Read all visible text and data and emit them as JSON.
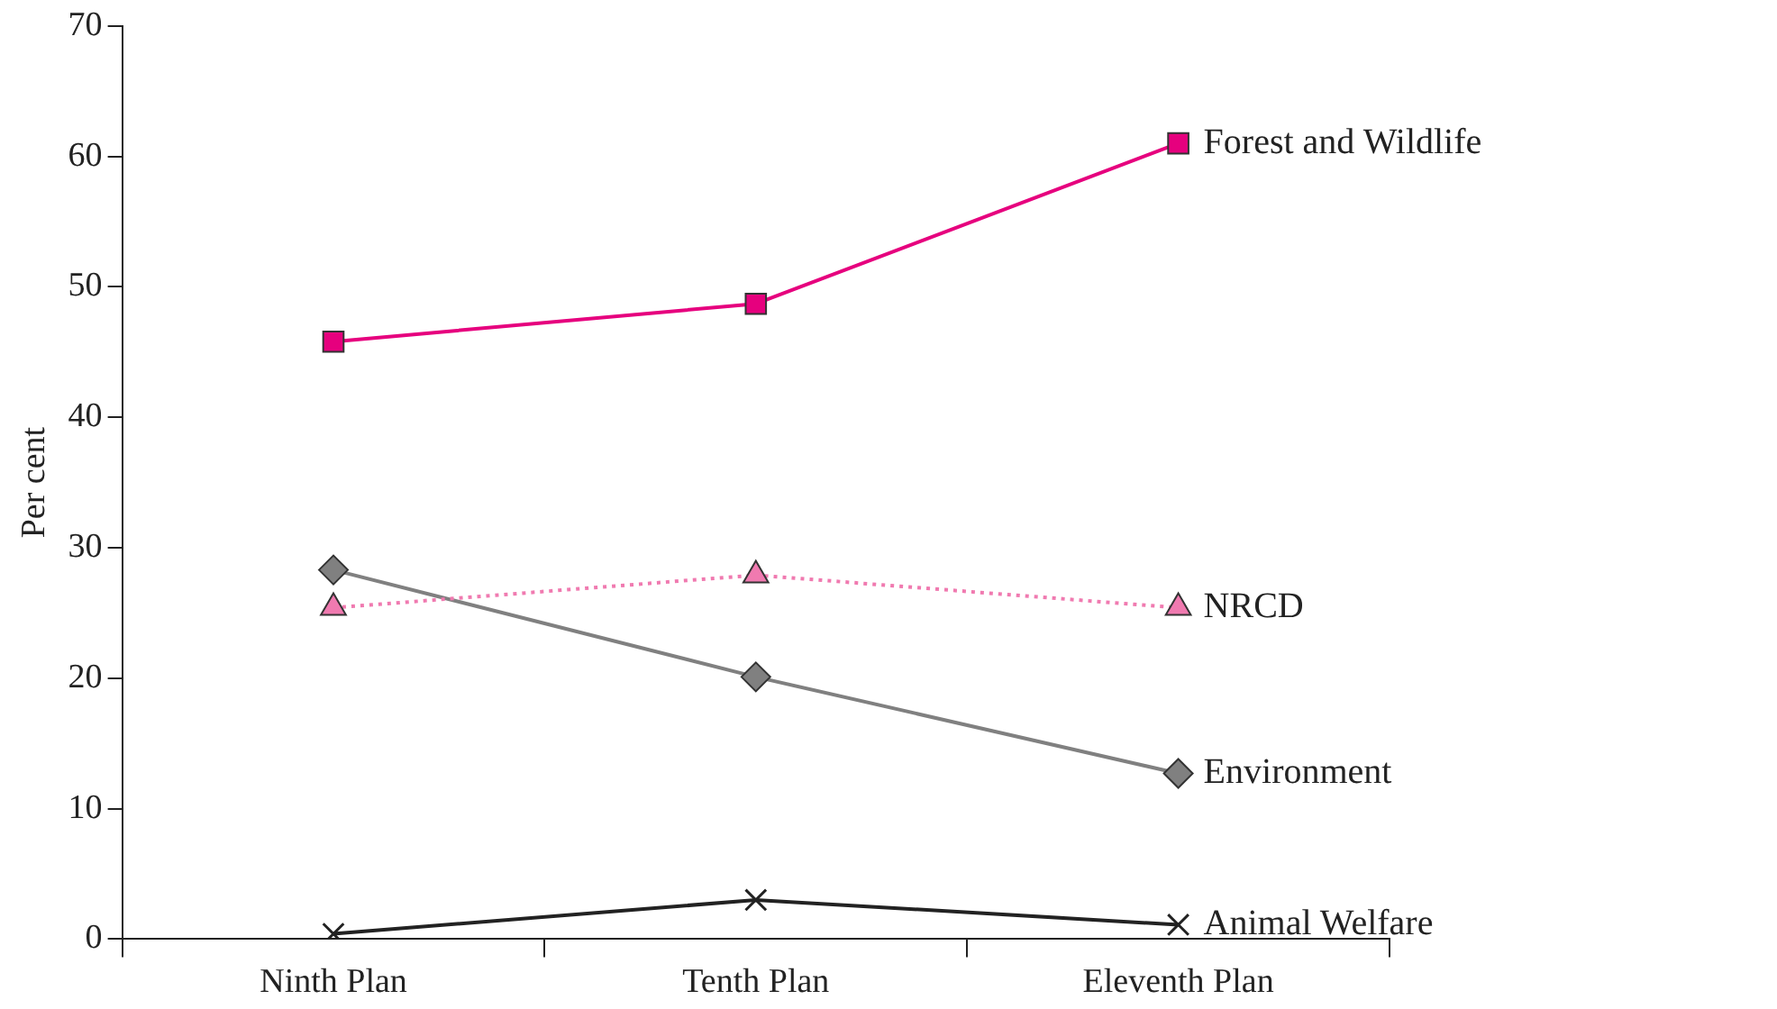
{
  "chart_data": {
    "type": "line",
    "ylabel": "Per cent",
    "categories": [
      "Ninth Plan",
      "Tenth Plan",
      "Eleventh Plan"
    ],
    "series": [
      {
        "name": "Forest and Wildlife",
        "color": "#e6007e",
        "marker": "square",
        "line_style": "solid",
        "values": [
          45.8,
          48.7,
          61.0
        ]
      },
      {
        "name": "NRCD",
        "color": "#f07ab0",
        "marker": "triangle",
        "line_style": "dotted",
        "values": [
          25.4,
          27.9,
          25.4
        ]
      },
      {
        "name": "Environment",
        "color": "#808080",
        "marker": "diamond",
        "line_style": "solid",
        "values": [
          28.3,
          20.1,
          12.7
        ]
      },
      {
        "name": "Animal Welfare",
        "color": "#222222",
        "marker": "cross",
        "line_style": "solid",
        "values": [
          0.4,
          3.0,
          1.1
        ]
      }
    ],
    "ylim": [
      0,
      70
    ],
    "yticks": [
      0,
      10,
      20,
      30,
      40,
      50,
      60,
      70
    ],
    "grid": false,
    "legend": false
  }
}
